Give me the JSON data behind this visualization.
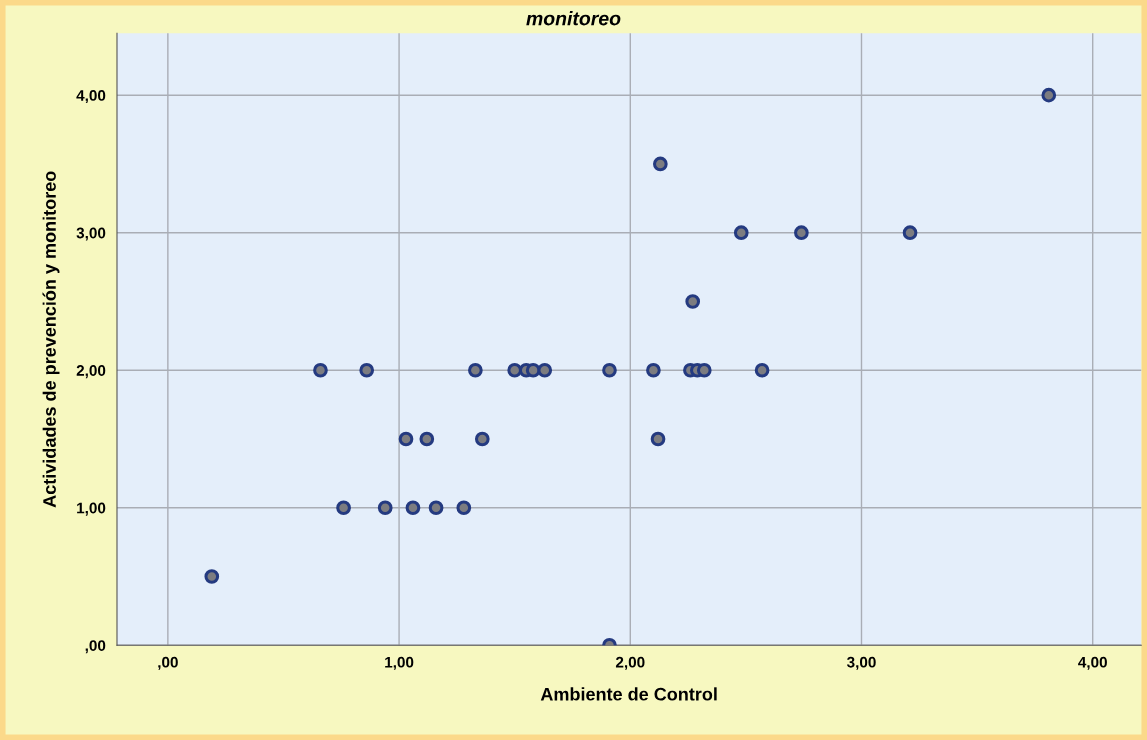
{
  "chart_data": {
    "type": "scatter",
    "title": "monitoreo",
    "xlabel": "Ambiente de Control",
    "ylabel": "Actividades de prevención y monitoreo",
    "x": [
      0.19,
      1.91,
      0.76,
      0.94,
      1.06,
      1.16,
      1.28,
      1.03,
      1.12,
      1.36,
      2.12,
      0.66,
      0.86,
      1.33,
      1.5,
      1.55,
      1.58,
      1.63,
      1.91,
      2.1,
      2.26,
      2.29,
      2.32,
      2.57,
      2.27,
      2.48,
      2.74,
      3.21,
      2.13,
      3.81
    ],
    "series": [
      {
        "color": "#243a80",
        "values": [
          0.5,
          0,
          1,
          1,
          1,
          1,
          1,
          1.5,
          1.5,
          1.5,
          1.5,
          2,
          2,
          2,
          2,
          2,
          2,
          2,
          2,
          2,
          2,
          2,
          2,
          2,
          2.5,
          3,
          3,
          3,
          3.5,
          4
        ]
      }
    ],
    "xlim": [
      -0.22,
      4.21
    ],
    "ylim": [
      0,
      4.45
    ],
    "xticks": [
      {
        "value": 0,
        "label": ",00"
      },
      {
        "value": 1,
        "label": "1,00"
      },
      {
        "value": 2,
        "label": "2,00"
      },
      {
        "value": 3,
        "label": "3,00"
      },
      {
        "value": 4,
        "label": "4,00"
      }
    ],
    "yticks": [
      {
        "value": 0,
        "label": ",00"
      },
      {
        "value": 1,
        "label": "1,00"
      },
      {
        "value": 2,
        "label": "2,00"
      },
      {
        "value": 3,
        "label": "3,00"
      },
      {
        "value": 4,
        "label": "4,00"
      }
    ],
    "grid": true,
    "marker": "circle",
    "legend": false
  }
}
